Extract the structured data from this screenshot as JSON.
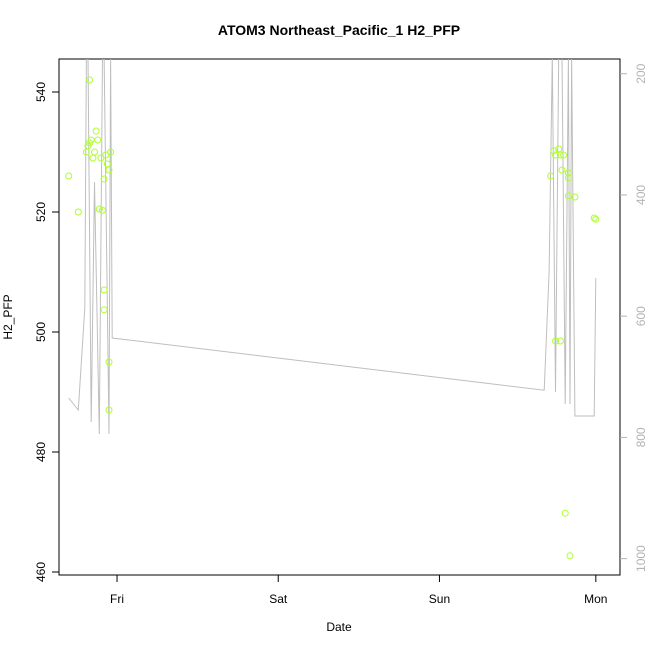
{
  "chart_data": {
    "type": "scatter",
    "title": "ATOM3 Northeast_Pacific_1 H2_PFP",
    "xlabel": "Date",
    "ylabel": "H2_PFP",
    "x_ticks": [
      {
        "label": "Fri",
        "day": 1.0
      },
      {
        "label": "Sat",
        "day": 2.0
      },
      {
        "label": "Sun",
        "day": 3.0
      },
      {
        "label": "Mon",
        "day": 3.97
      }
    ],
    "xlim": [
      0.64,
      4.12
    ],
    "ylim": [
      459.5,
      545.5
    ],
    "y_ticks": [
      460,
      480,
      500,
      520,
      540
    ],
    "point_color": "#adff2f",
    "line_color": "#bebebe",
    "right_axis": {
      "color": "#b3b3b3",
      "ticks": [
        200,
        400,
        600,
        800,
        1000
      ],
      "ylim": [
        1027,
        175.7
      ]
    },
    "series": [
      {
        "kind": "points",
        "points": [
          [
            0.7,
            526
          ],
          [
            0.76,
            520
          ],
          [
            0.81,
            530
          ],
          [
            0.82,
            531
          ],
          [
            0.83,
            531.5
          ],
          [
            0.83,
            542
          ],
          [
            0.84,
            532
          ],
          [
            0.85,
            529
          ],
          [
            0.86,
            530
          ],
          [
            0.87,
            533.5
          ],
          [
            0.88,
            532
          ],
          [
            0.89,
            520.5
          ],
          [
            0.9,
            529
          ],
          [
            0.91,
            520.3
          ],
          [
            0.92,
            525.5
          ],
          [
            0.92,
            507
          ],
          [
            0.92,
            503.7
          ],
          [
            0.93,
            529.5
          ],
          [
            0.94,
            528
          ],
          [
            0.95,
            527
          ],
          [
            0.95,
            495
          ],
          [
            0.95,
            487
          ],
          [
            0.96,
            530
          ],
          [
            3.69,
            526
          ],
          [
            3.71,
            530.2
          ],
          [
            3.72,
            529.5
          ],
          [
            3.72,
            498.5
          ],
          [
            3.74,
            530.5
          ],
          [
            3.75,
            529.5
          ],
          [
            3.75,
            498.5
          ],
          [
            3.76,
            527
          ],
          [
            3.77,
            529.5
          ],
          [
            3.78,
            469.8
          ],
          [
            3.8,
            526.5
          ],
          [
            3.8,
            525.7
          ],
          [
            3.8,
            522.7
          ],
          [
            3.81,
            462.7
          ],
          [
            3.84,
            522.5
          ],
          [
            3.96,
            519
          ],
          [
            3.97,
            518.8
          ]
        ]
      },
      {
        "kind": "line",
        "points": [
          [
            0.7,
            489
          ],
          [
            0.76,
            487
          ],
          [
            0.8,
            504
          ],
          [
            0.81,
            546
          ],
          [
            0.82,
            546
          ],
          [
            0.84,
            485
          ],
          [
            0.86,
            525
          ],
          [
            0.89,
            483
          ],
          [
            0.91,
            546
          ],
          [
            0.92,
            546
          ],
          [
            0.95,
            483
          ],
          [
            0.96,
            546
          ],
          [
            0.97,
            499
          ],
          [
            3.65,
            490.3
          ],
          [
            3.68,
            510
          ],
          [
            3.7,
            546
          ],
          [
            3.72,
            490
          ],
          [
            3.74,
            546
          ],
          [
            3.76,
            546
          ],
          [
            3.78,
            488
          ],
          [
            3.8,
            546
          ],
          [
            3.81,
            488
          ],
          [
            3.82,
            546
          ],
          [
            3.84,
            486
          ],
          [
            3.9,
            486
          ],
          [
            3.96,
            486
          ],
          [
            3.97,
            509
          ]
        ]
      }
    ]
  }
}
